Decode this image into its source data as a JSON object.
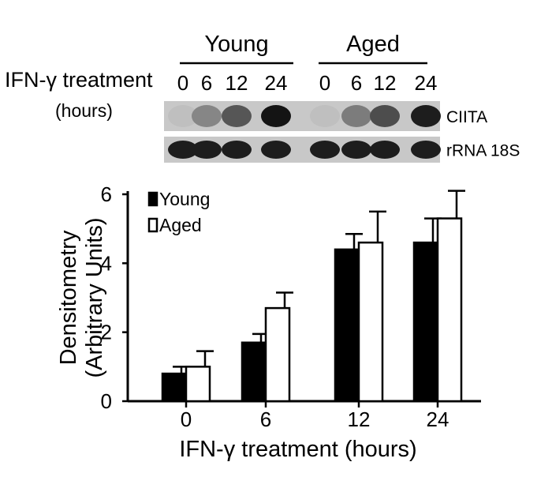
{
  "blot": {
    "groups": [
      "Young",
      "Aged"
    ],
    "treatment_label": "IFN-γ treatment",
    "hours_label": "(hours)",
    "timepoints": [
      "0",
      "6",
      "12",
      "24",
      "0",
      "6",
      "12",
      "24"
    ],
    "rows": [
      {
        "label": "CIITA",
        "intensity": [
          0.05,
          0.35,
          0.6,
          0.95,
          0.05,
          0.4,
          0.65,
          0.9
        ]
      },
      {
        "label": "rRNA 18S",
        "intensity": [
          0.9,
          0.9,
          0.9,
          0.9,
          0.9,
          0.9,
          0.9,
          0.9
        ]
      }
    ]
  },
  "chart_data": {
    "type": "bar",
    "categories": [
      "0",
      "6",
      "12",
      "24"
    ],
    "series": [
      {
        "name": "Young",
        "values": [
          0.8,
          1.7,
          4.4,
          4.6
        ],
        "errors": [
          0.2,
          0.25,
          0.45,
          0.7
        ],
        "color": "#000000"
      },
      {
        "name": "Aged",
        "values": [
          1.0,
          2.7,
          4.6,
          5.3
        ],
        "errors": [
          0.45,
          0.45,
          0.9,
          0.8
        ],
        "color": "#ffffff"
      }
    ],
    "xlabel": "IFN-γ treatment (hours)",
    "ylabel": "Densitometry",
    "ylabel2": "(Arbitrary Units)",
    "ylim": [
      0,
      6
    ],
    "yticks": [
      0,
      2,
      4,
      6
    ],
    "legend_position": "top-left"
  }
}
